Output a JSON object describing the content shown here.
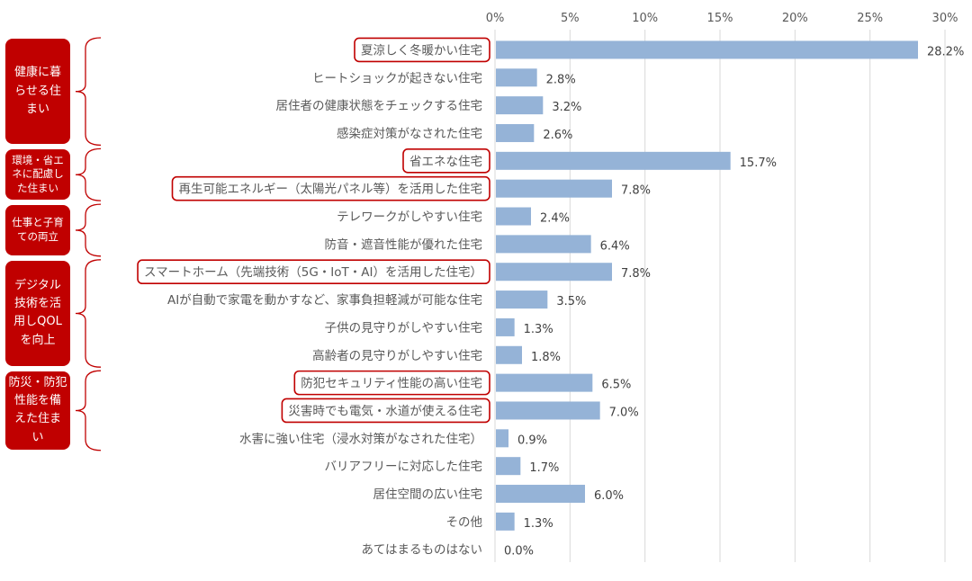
{
  "chart_data": {
    "type": "bar",
    "orientation": "horizontal",
    "title": "",
    "xlabel": "",
    "ylabel": "",
    "xlim": [
      0,
      30
    ],
    "x_ticks": [
      "0%",
      "5%",
      "10%",
      "15%",
      "20%",
      "25%",
      "30%"
    ],
    "x_tick_values": [
      0,
      5,
      10,
      15,
      20,
      25,
      30
    ],
    "grid": "vertical",
    "bar_color": "#95b3d7",
    "highlight_color": "#c00000",
    "categories": [
      "夏涼しく冬暖かい住宅",
      "ヒートショックが起きない住宅",
      "居住者の健康状態をチェックする住宅",
      "感染症対策がなされた住宅",
      "省エネな住宅",
      "再生可能エネルギー（太陽光パネル等）を活用した住宅",
      "テレワークがしやすい住宅",
      "防音・遮音性能が優れた住宅",
      "スマートホーム（先端技術（5G・IoT・AI）を活用した住宅）",
      "AIが自動で家電を動かすなど、家事負担軽減が可能な住宅",
      "子供の見守りがしやすい住宅",
      "高齢者の見守りがしやすい住宅",
      "防犯セキュリティ性能の高い住宅",
      "災害時でも電気・水道が使える住宅",
      "水害に強い住宅（浸水対策がなされた住宅）",
      "バリアフリーに対応した住宅",
      "居住空間の広い住宅",
      "その他",
      "あてはまるものはない"
    ],
    "values": [
      28.2,
      2.8,
      3.2,
      2.6,
      15.7,
      7.8,
      2.4,
      6.4,
      7.8,
      3.5,
      1.3,
      1.8,
      6.5,
      7.0,
      0.9,
      1.7,
      6.0,
      1.3,
      0.0
    ],
    "data_labels": [
      "28.2%",
      "2.8%",
      "3.2%",
      "2.6%",
      "15.7%",
      "7.8%",
      "2.4%",
      "6.4%",
      "7.8%",
      "3.5%",
      "1.3%",
      "1.8%",
      "6.5%",
      "7.0%",
      "0.9%",
      "1.7%",
      "6.0%",
      "1.3%",
      "0.0%"
    ],
    "highlighted": [
      true,
      false,
      false,
      false,
      true,
      true,
      false,
      false,
      true,
      false,
      false,
      false,
      true,
      true,
      false,
      false,
      false,
      false,
      false
    ],
    "groups": [
      {
        "label": "健康に暮\nらせる住\nまい",
        "from": 0,
        "to": 3
      },
      {
        "label": "環境・省エ\nネに配慮し\nた住まい",
        "from": 4,
        "to": 5
      },
      {
        "label": "仕事と子育\nての両立",
        "from": 6,
        "to": 7
      },
      {
        "label": "デジタル\n技術を活\n用しQOL\nを向上",
        "from": 8,
        "to": 11
      },
      {
        "label": "防災・防犯\n性能を備\nえた住ま\nい",
        "from": 12,
        "to": 14
      }
    ]
  }
}
